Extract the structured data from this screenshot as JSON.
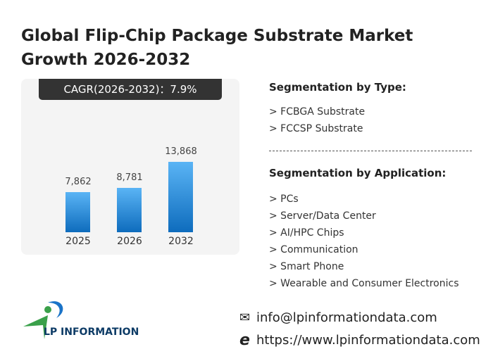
{
  "title": "Global Flip-Chip Package Substrate Market Growth 2026-2032",
  "cagr_label": "CAGR(2026-2032)：7.9%",
  "chart_data": {
    "type": "bar",
    "categories": [
      "2025",
      "2026",
      "2032"
    ],
    "values": [
      7862,
      8781,
      13868
    ],
    "value_labels": [
      "7,862",
      "8,781",
      "13,868"
    ],
    "bar_color_gradient": [
      "#5ab4f5",
      "#0e6cbd"
    ]
  },
  "segmentation_type": {
    "heading": "Segmentation by Type:",
    "items": [
      "> FCBGA Substrate",
      "> FCCSP Substrate"
    ]
  },
  "segmentation_application": {
    "heading": "Segmentation by Application:",
    "items": [
      "> PCs",
      "> Server/Data Center",
      "> AI/HPC Chips",
      "> Communication",
      "> Smart Phone",
      "> Wearable and Consumer Electronics"
    ]
  },
  "logo": {
    "text": "LP INFORMATION"
  },
  "contact": {
    "email": "info@lpinformationdata.com",
    "website": "https://www.lpinformationdata.com",
    "email_icon": "envelope-icon",
    "web_icon": "internet-explorer-icon"
  },
  "watermark": "LP INFORMATION"
}
